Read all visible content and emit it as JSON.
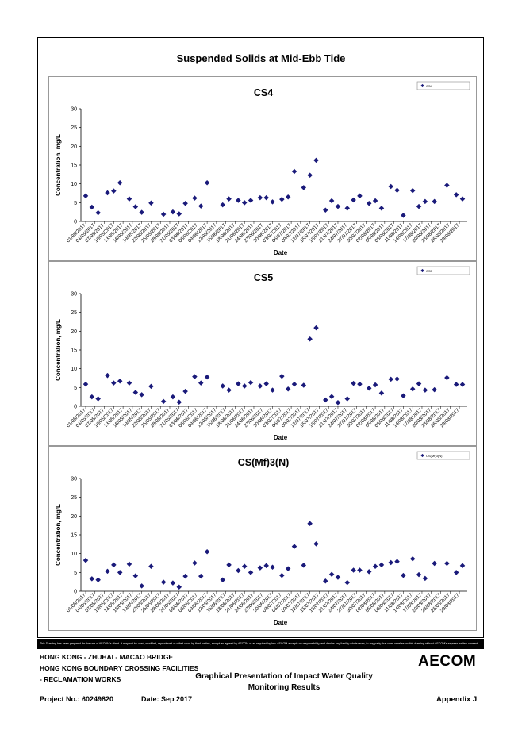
{
  "main_title": "Suspended Solids at Mid-Ebb Tide",
  "x_ticks": [
    "01/05/2017",
    "04/05/2017",
    "07/05/2017",
    "10/05/2017",
    "13/05/2017",
    "16/05/2017",
    "19/05/2017",
    "22/05/2017",
    "25/05/2017",
    "28/05/2017",
    "31/05/2017",
    "03/06/2017",
    "06/06/2017",
    "09/06/2017",
    "12/06/2017",
    "15/06/2017",
    "18/06/2017",
    "21/06/2017",
    "24/06/2017",
    "27/06/2017",
    "30/06/2017",
    "03/07/2017",
    "06/07/2017",
    "09/07/2017",
    "12/07/2017",
    "15/07/2017",
    "18/07/2017",
    "21/07/2017",
    "24/07/2017",
    "27/07/2017",
    "30/07/2017",
    "02/08/2017",
    "05/08/2017",
    "08/08/2017",
    "11/08/2017",
    "14/08/2017",
    "17/08/2017",
    "20/08/2017",
    "23/08/2017",
    "26/08/2017",
    "29/08/2017"
  ],
  "chart_data": [
    {
      "type": "scatter",
      "title": "CS4",
      "xlabel": "Date",
      "ylabel": "Concentration, mg/L",
      "legend": "CS4",
      "legend_position": "top-right",
      "x_range": [
        "01/05/2017",
        "30/08/2017"
      ],
      "ylim": [
        0,
        30
      ],
      "y_ticks": [
        0,
        5,
        10,
        15,
        20,
        25,
        30
      ],
      "grid": false,
      "points": [
        {
          "x": "01/05/2017",
          "y": 6.8
        },
        {
          "x": "03/05/2017",
          "y": 3.8
        },
        {
          "x": "05/05/2017",
          "y": 2.3
        },
        {
          "x": "08/05/2017",
          "y": 7.6
        },
        {
          "x": "10/05/2017",
          "y": 8.1
        },
        {
          "x": "12/05/2017",
          "y": 10.3
        },
        {
          "x": "15/05/2017",
          "y": 6.0
        },
        {
          "x": "17/05/2017",
          "y": 3.9
        },
        {
          "x": "19/05/2017",
          "y": 2.4
        },
        {
          "x": "22/05/2017",
          "y": 4.9
        },
        {
          "x": "26/05/2017",
          "y": 1.9
        },
        {
          "x": "29/05/2017",
          "y": 2.5
        },
        {
          "x": "31/05/2017",
          "y": 2.0
        },
        {
          "x": "02/06/2017",
          "y": 4.8
        },
        {
          "x": "05/06/2017",
          "y": 6.2
        },
        {
          "x": "07/06/2017",
          "y": 4.1
        },
        {
          "x": "09/06/2017",
          "y": 10.3
        },
        {
          "x": "14/06/2017",
          "y": 4.4
        },
        {
          "x": "16/06/2017",
          "y": 6.0
        },
        {
          "x": "19/06/2017",
          "y": 5.6
        },
        {
          "x": "21/06/2017",
          "y": 5.0
        },
        {
          "x": "23/06/2017",
          "y": 5.6
        },
        {
          "x": "26/06/2017",
          "y": 6.3
        },
        {
          "x": "28/06/2017",
          "y": 6.3
        },
        {
          "x": "30/06/2017",
          "y": 5.2
        },
        {
          "x": "03/07/2017",
          "y": 5.9
        },
        {
          "x": "05/07/2017",
          "y": 6.5
        },
        {
          "x": "07/07/2017",
          "y": 13.3
        },
        {
          "x": "10/07/2017",
          "y": 9.0
        },
        {
          "x": "12/07/2017",
          "y": 12.3
        },
        {
          "x": "14/07/2017",
          "y": 16.3
        },
        {
          "x": "17/07/2017",
          "y": 3.0
        },
        {
          "x": "19/07/2017",
          "y": 5.5
        },
        {
          "x": "21/07/2017",
          "y": 4.0
        },
        {
          "x": "24/07/2017",
          "y": 3.5
        },
        {
          "x": "26/07/2017",
          "y": 5.7
        },
        {
          "x": "28/07/2017",
          "y": 6.8
        },
        {
          "x": "31/07/2017",
          "y": 4.8
        },
        {
          "x": "02/08/2017",
          "y": 5.5
        },
        {
          "x": "04/08/2017",
          "y": 3.5
        },
        {
          "x": "07/08/2017",
          "y": 9.3
        },
        {
          "x": "09/08/2017",
          "y": 8.3
        },
        {
          "x": "11/08/2017",
          "y": 1.6
        },
        {
          "x": "14/08/2017",
          "y": 8.2
        },
        {
          "x": "16/08/2017",
          "y": 4.0
        },
        {
          "x": "18/08/2017",
          "y": 5.3
        },
        {
          "x": "21/08/2017",
          "y": 5.3
        },
        {
          "x": "25/08/2017",
          "y": 9.6
        },
        {
          "x": "28/08/2017",
          "y": 7.1
        },
        {
          "x": "30/08/2017",
          "y": 6.0
        }
      ]
    },
    {
      "type": "scatter",
      "title": "CS5",
      "xlabel": "Date",
      "ylabel": "Concentration, mg/L",
      "legend": "CS5",
      "legend_position": "top-right",
      "x_range": [
        "01/05/2017",
        "30/08/2017"
      ],
      "ylim": [
        0,
        30
      ],
      "y_ticks": [
        0,
        5,
        10,
        15,
        20,
        25,
        30
      ],
      "grid": false,
      "points": [
        {
          "x": "01/05/2017",
          "y": 5.9
        },
        {
          "x": "03/05/2017",
          "y": 2.5
        },
        {
          "x": "05/05/2017",
          "y": 2.0
        },
        {
          "x": "08/05/2017",
          "y": 8.2
        },
        {
          "x": "10/05/2017",
          "y": 6.2
        },
        {
          "x": "12/05/2017",
          "y": 6.7
        },
        {
          "x": "15/05/2017",
          "y": 6.2
        },
        {
          "x": "17/05/2017",
          "y": 3.7
        },
        {
          "x": "19/05/2017",
          "y": 3.1
        },
        {
          "x": "22/05/2017",
          "y": 5.3
        },
        {
          "x": "26/05/2017",
          "y": 1.3
        },
        {
          "x": "29/05/2017",
          "y": 2.5
        },
        {
          "x": "31/05/2017",
          "y": 1.1
        },
        {
          "x": "02/06/2017",
          "y": 4.0
        },
        {
          "x": "05/06/2017",
          "y": 7.9
        },
        {
          "x": "07/06/2017",
          "y": 6.2
        },
        {
          "x": "09/06/2017",
          "y": 7.8
        },
        {
          "x": "14/06/2017",
          "y": 5.4
        },
        {
          "x": "16/06/2017",
          "y": 4.3
        },
        {
          "x": "19/06/2017",
          "y": 6.0
        },
        {
          "x": "21/06/2017",
          "y": 5.4
        },
        {
          "x": "23/06/2017",
          "y": 6.3
        },
        {
          "x": "26/06/2017",
          "y": 5.4
        },
        {
          "x": "28/06/2017",
          "y": 6.0
        },
        {
          "x": "30/06/2017",
          "y": 4.3
        },
        {
          "x": "03/07/2017",
          "y": 8.0
        },
        {
          "x": "05/07/2017",
          "y": 4.6
        },
        {
          "x": "07/07/2017",
          "y": 5.9
        },
        {
          "x": "10/07/2017",
          "y": 5.6
        },
        {
          "x": "12/07/2017",
          "y": 17.9
        },
        {
          "x": "14/07/2017",
          "y": 20.9
        },
        {
          "x": "17/07/2017",
          "y": 1.7
        },
        {
          "x": "19/07/2017",
          "y": 2.6
        },
        {
          "x": "21/07/2017",
          "y": 1.0
        },
        {
          "x": "24/07/2017",
          "y": 2.0
        },
        {
          "x": "26/07/2017",
          "y": 6.1
        },
        {
          "x": "28/07/2017",
          "y": 5.9
        },
        {
          "x": "31/07/2017",
          "y": 4.8
        },
        {
          "x": "02/08/2017",
          "y": 5.7
        },
        {
          "x": "04/08/2017",
          "y": 3.5
        },
        {
          "x": "07/08/2017",
          "y": 7.2
        },
        {
          "x": "09/08/2017",
          "y": 7.3
        },
        {
          "x": "11/08/2017",
          "y": 2.8
        },
        {
          "x": "14/08/2017",
          "y": 4.6
        },
        {
          "x": "16/08/2017",
          "y": 6.0
        },
        {
          "x": "18/08/2017",
          "y": 4.3
        },
        {
          "x": "21/08/2017",
          "y": 4.4
        },
        {
          "x": "25/08/2017",
          "y": 7.6
        },
        {
          "x": "28/08/2017",
          "y": 5.8
        },
        {
          "x": "30/08/2017",
          "y": 5.8
        }
      ]
    },
    {
      "type": "scatter",
      "title": "CS(Mf)3(N)",
      "xlabel": "Date",
      "ylabel": "Concentration, mg/L",
      "legend": "CS(Mf)3(N)",
      "legend_position": "top-right",
      "x_range": [
        "01/05/2017",
        "30/08/2017"
      ],
      "ylim": [
        0,
        30
      ],
      "y_ticks": [
        0,
        5,
        10,
        15,
        20,
        25,
        30
      ],
      "grid": false,
      "points": [
        {
          "x": "01/05/2017",
          "y": 8.2
        },
        {
          "x": "03/05/2017",
          "y": 3.3
        },
        {
          "x": "05/05/2017",
          "y": 3.0
        },
        {
          "x": "08/05/2017",
          "y": 5.3
        },
        {
          "x": "10/05/2017",
          "y": 7.0
        },
        {
          "x": "12/05/2017",
          "y": 5.0
        },
        {
          "x": "15/05/2017",
          "y": 7.2
        },
        {
          "x": "17/05/2017",
          "y": 4.1
        },
        {
          "x": "19/05/2017",
          "y": 1.4
        },
        {
          "x": "22/05/2017",
          "y": 6.6
        },
        {
          "x": "26/05/2017",
          "y": 2.4
        },
        {
          "x": "29/05/2017",
          "y": 2.2
        },
        {
          "x": "31/05/2017",
          "y": 1.1
        },
        {
          "x": "02/06/2017",
          "y": 4.0
        },
        {
          "x": "05/06/2017",
          "y": 7.5
        },
        {
          "x": "07/06/2017",
          "y": 4.0
        },
        {
          "x": "09/06/2017",
          "y": 10.5
        },
        {
          "x": "14/06/2017",
          "y": 3.0
        },
        {
          "x": "16/06/2017",
          "y": 7.0
        },
        {
          "x": "19/06/2017",
          "y": 5.5
        },
        {
          "x": "21/06/2017",
          "y": 6.6
        },
        {
          "x": "23/06/2017",
          "y": 5.0
        },
        {
          "x": "26/06/2017",
          "y": 6.2
        },
        {
          "x": "28/06/2017",
          "y": 6.8
        },
        {
          "x": "30/06/2017",
          "y": 6.4
        },
        {
          "x": "03/07/2017",
          "y": 4.2
        },
        {
          "x": "05/07/2017",
          "y": 6.0
        },
        {
          "x": "07/07/2017",
          "y": 11.9
        },
        {
          "x": "10/07/2017",
          "y": 6.9
        },
        {
          "x": "12/07/2017",
          "y": 18.0
        },
        {
          "x": "14/07/2017",
          "y": 12.6
        },
        {
          "x": "17/07/2017",
          "y": 2.7
        },
        {
          "x": "19/07/2017",
          "y": 4.5
        },
        {
          "x": "21/07/2017",
          "y": 3.7
        },
        {
          "x": "24/07/2017",
          "y": 2.3
        },
        {
          "x": "26/07/2017",
          "y": 5.6
        },
        {
          "x": "28/07/2017",
          "y": 5.6
        },
        {
          "x": "31/07/2017",
          "y": 5.2
        },
        {
          "x": "02/08/2017",
          "y": 6.6
        },
        {
          "x": "04/08/2017",
          "y": 7.0
        },
        {
          "x": "07/08/2017",
          "y": 7.6
        },
        {
          "x": "09/08/2017",
          "y": 7.9
        },
        {
          "x": "11/08/2017",
          "y": 4.2
        },
        {
          "x": "14/08/2017",
          "y": 8.6
        },
        {
          "x": "16/08/2017",
          "y": 4.4
        },
        {
          "x": "18/08/2017",
          "y": 3.4
        },
        {
          "x": "21/08/2017",
          "y": 7.4
        },
        {
          "x": "25/08/2017",
          "y": 7.4
        },
        {
          "x": "28/08/2017",
          "y": 5.0
        },
        {
          "x": "30/08/2017",
          "y": 6.8
        }
      ]
    }
  ],
  "footer": {
    "disclaimer": "This Drawing has been prepared for the use of AECOM's client. It may not be used, modified, reproduced or relied upon by third parties, except as agreed by AECOM or as required by law. AECOM accepts no responsibility, and denies any liability whatsoever, to any party that uses or relies on this drawing without AECOM's express written consent.",
    "line1": "HONG KONG - ZHUHAI - MACAO BRIDGE",
    "line2": "HONG KONG BOUNDARY CROSSING FACILITIES",
    "line3": "- RECLAMATION WORKS",
    "center_title_1": "Graphical Presentation of Impact Water Quality",
    "center_title_2": "Monitoring Results",
    "project": "Project No.: 60249820",
    "date": "Date: Sep 2017",
    "appendix": "Appendix J",
    "logo": "AECOM"
  },
  "colors": {
    "marker": "#1a1a7a",
    "frame": "#000000",
    "disclaimer_bg": "#000000"
  }
}
